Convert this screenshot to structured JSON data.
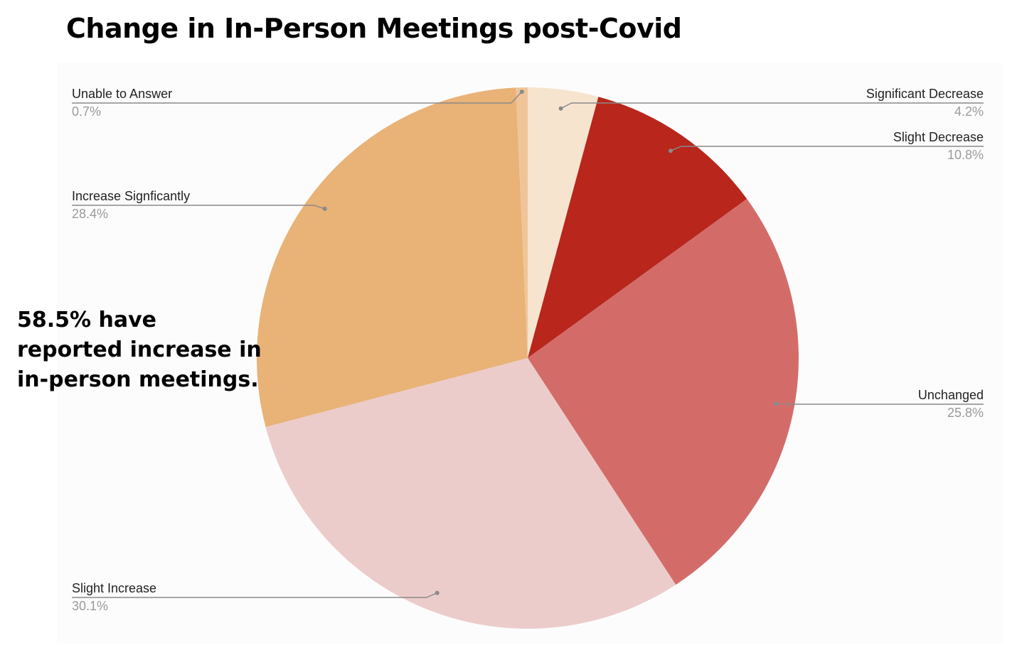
{
  "title": "Change in In-Person Meetings post-Covid",
  "annotation": "58.5% have reported increase in in-person meetings.",
  "chart_data": {
    "type": "pie",
    "start_direction": "clockwise from top",
    "slices": [
      {
        "label": "Significant Decrease",
        "value_label": "4.2%",
        "value": 4.2,
        "color": "#f7e4cf",
        "label_side": "right"
      },
      {
        "label": "Slight Decrease",
        "value_label": "10.8%",
        "value": 10.8,
        "color": "#b8261c",
        "label_side": "right"
      },
      {
        "label": "Unchanged",
        "value_label": "25.8%",
        "value": 25.8,
        "color": "#d36c69",
        "label_side": "right"
      },
      {
        "label": "Slight Increase",
        "value_label": "30.1%",
        "value": 30.1,
        "color": "#eccccb",
        "label_side": "left"
      },
      {
        "label": "Increase Signficantly",
        "value_label": "28.4%",
        "value": 28.4,
        "color": "#e9b277",
        "label_side": "left"
      },
      {
        "label": "Unable to Answer",
        "value_label": "0.7%",
        "value": 0.7,
        "color": "#efc598",
        "label_side": "left"
      }
    ],
    "legend": "none",
    "labels": "callouts with leader lines"
  }
}
